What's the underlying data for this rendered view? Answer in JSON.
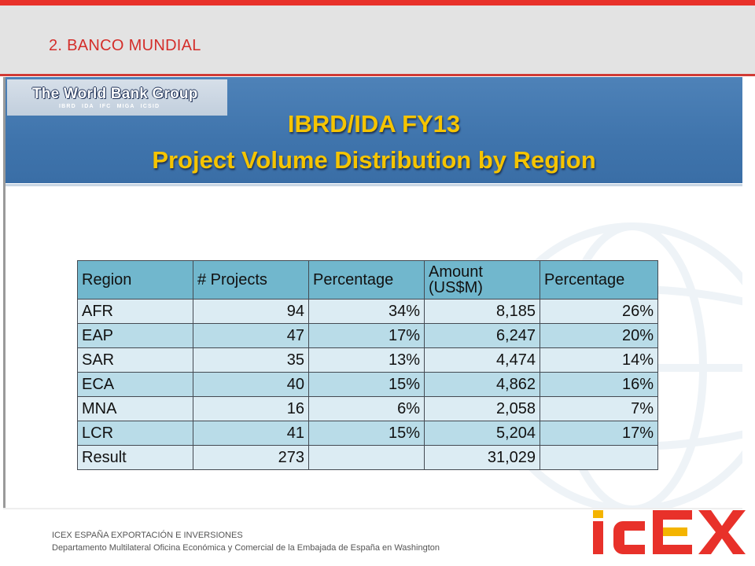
{
  "header": {
    "section_title": "2. BANCO MUNDIAL"
  },
  "slide": {
    "logo": {
      "name": "The World Bank Group",
      "subtitle": "IBRD   IDA   IFC   MIGA   ICSID"
    },
    "title_line1": "IBRD/IDA FY13",
    "title_line2": "Project Volume Distribution by Region",
    "table": {
      "headers": [
        "Region",
        "# Projects",
        "Percentage",
        "Amount\n(US$M)",
        "Percentage"
      ],
      "rows": [
        [
          "AFR",
          "94",
          "34%",
          "8,185",
          "26%"
        ],
        [
          "EAP",
          "47",
          "17%",
          "6,247",
          "20%"
        ],
        [
          "SAR",
          "35",
          "13%",
          "4,474",
          "14%"
        ],
        [
          "ECA",
          "40",
          "15%",
          "4,862",
          "16%"
        ],
        [
          "MNA",
          "16",
          "6%",
          "2,058",
          "7%"
        ],
        [
          "LCR",
          "41",
          "15%",
          "5,204",
          "17%"
        ],
        [
          "Result",
          "273",
          "",
          "31,029",
          ""
        ]
      ]
    }
  },
  "footer": {
    "line1": "ICEX ESPAÑA EXPORTACIÓN  E INVERSIONES",
    "line2": "Departamento Multilateral Oficina Económica y Comercial de la Embajada de España en Washington"
  },
  "brand": {
    "logo_text": "ICEX",
    "red": "#e8312a",
    "yellow": "#f4b400"
  },
  "colors": {
    "accent_red": "#d42e2a",
    "banner_blue": "#3f74ac",
    "title_yellow": "#f5c400",
    "header_cell": "#71b7cd",
    "row_light": "#dcecf3",
    "row_dark": "#b9dce8"
  }
}
